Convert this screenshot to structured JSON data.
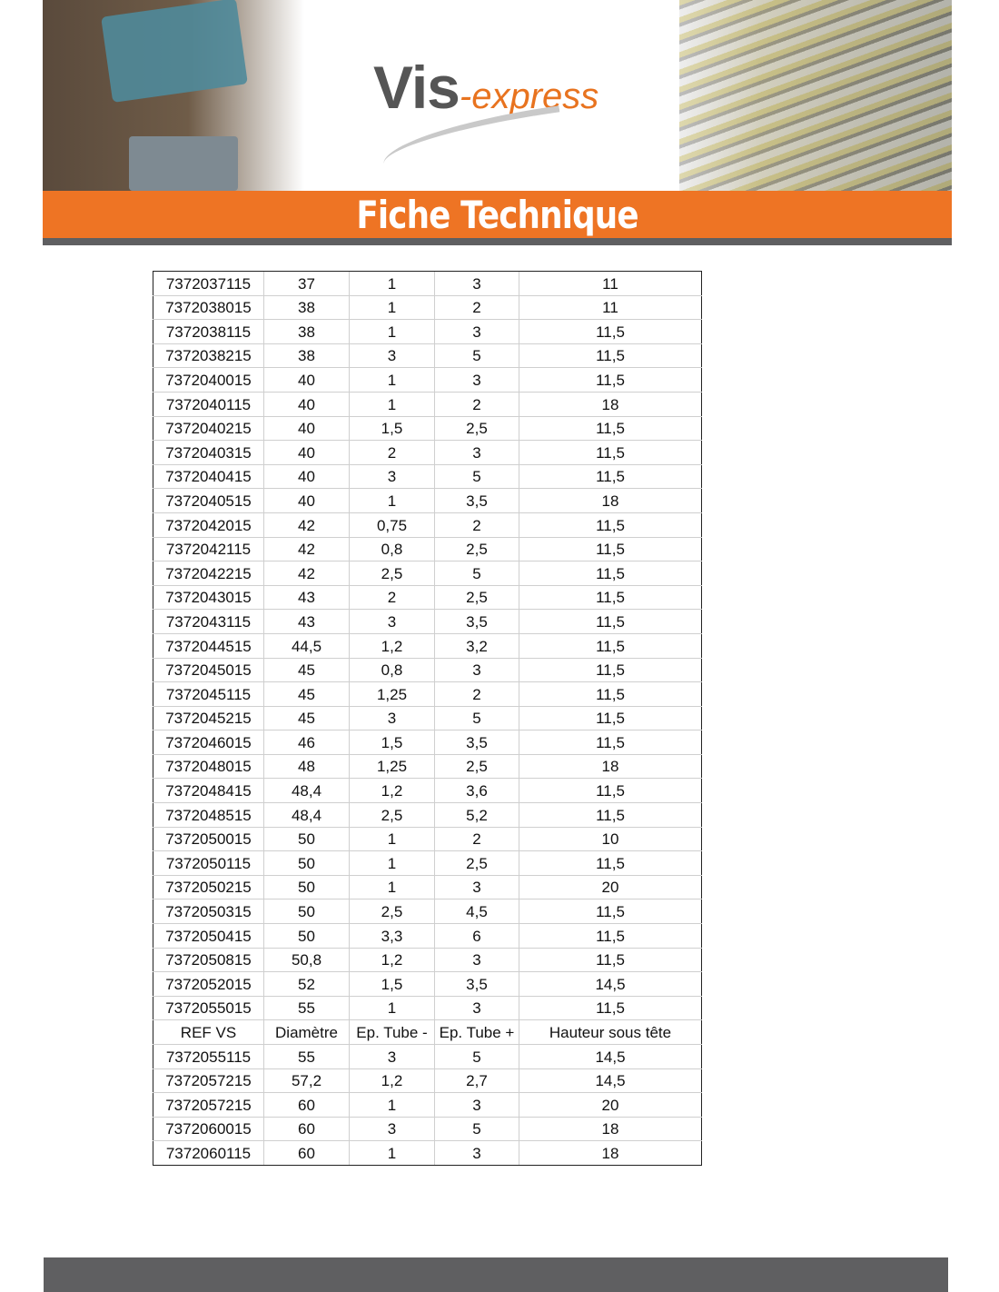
{
  "brand": {
    "name_main": "Vis",
    "name_suffix": "-express",
    "accent_color": "#ee7424",
    "gray_color": "#5f5f61"
  },
  "title": "Fiche Technique",
  "table": {
    "header": [
      "REF VS",
      "Diamètre",
      "Ep. Tube -",
      "Ep. Tube +",
      "Hauteur sous tête"
    ],
    "rows_before_header": [
      [
        "7372037115",
        "37",
        "1",
        "3",
        "11"
      ],
      [
        "7372038015",
        "38",
        "1",
        "2",
        "11"
      ],
      [
        "7372038115",
        "38",
        "1",
        "3",
        "11,5"
      ],
      [
        "7372038215",
        "38",
        "3",
        "5",
        "11,5"
      ],
      [
        "7372040015",
        "40",
        "1",
        "3",
        "11,5"
      ],
      [
        "7372040115",
        "40",
        "1",
        "2",
        "18"
      ],
      [
        "7372040215",
        "40",
        "1,5",
        "2,5",
        "11,5"
      ],
      [
        "7372040315",
        "40",
        "2",
        "3",
        "11,5"
      ],
      [
        "7372040415",
        "40",
        "3",
        "5",
        "11,5"
      ],
      [
        "7372040515",
        "40",
        "1",
        "3,5",
        "18"
      ],
      [
        "7372042015",
        "42",
        "0,75",
        "2",
        "11,5"
      ],
      [
        "7372042115",
        "42",
        "0,8",
        "2,5",
        "11,5"
      ],
      [
        "7372042215",
        "42",
        "2,5",
        "5",
        "11,5"
      ],
      [
        "7372043015",
        "43",
        "2",
        "2,5",
        "11,5"
      ],
      [
        "7372043115",
        "43",
        "3",
        "3,5",
        "11,5"
      ],
      [
        "7372044515",
        "44,5",
        "1,2",
        "3,2",
        "11,5"
      ],
      [
        "7372045015",
        "45",
        "0,8",
        "3",
        "11,5"
      ],
      [
        "7372045115",
        "45",
        "1,25",
        "2",
        "11,5"
      ],
      [
        "7372045215",
        "45",
        "3",
        "5",
        "11,5"
      ],
      [
        "7372046015",
        "46",
        "1,5",
        "3,5",
        "11,5"
      ],
      [
        "7372048015",
        "48",
        "1,25",
        "2,5",
        "18"
      ],
      [
        "7372048415",
        "48,4",
        "1,2",
        "3,6",
        "11,5"
      ],
      [
        "7372048515",
        "48,4",
        "2,5",
        "5,2",
        "11,5"
      ],
      [
        "7372050015",
        "50",
        "1",
        "2",
        "10"
      ],
      [
        "7372050115",
        "50",
        "1",
        "2,5",
        "11,5"
      ],
      [
        "7372050215",
        "50",
        "1",
        "3",
        "20"
      ],
      [
        "7372050315",
        "50",
        "2,5",
        "4,5",
        "11,5"
      ],
      [
        "7372050415",
        "50",
        "3,3",
        "6",
        "11,5"
      ],
      [
        "7372050815",
        "50,8",
        "1,2",
        "3",
        "11,5"
      ],
      [
        "7372052015",
        "52",
        "1,5",
        "3,5",
        "14,5"
      ],
      [
        "7372055015",
        "55",
        "1",
        "3",
        "11,5"
      ]
    ],
    "rows_after_header": [
      [
        "7372055115",
        "55",
        "3",
        "5",
        "14,5"
      ],
      [
        "7372057215",
        "57,2",
        "1,2",
        "2,7",
        "14,5"
      ],
      [
        "7372057215",
        "60",
        "1",
        "3",
        "20"
      ],
      [
        "7372060015",
        "60",
        "3",
        "5",
        "18"
      ],
      [
        "7372060115",
        "60",
        "1",
        "3",
        "18"
      ]
    ]
  }
}
